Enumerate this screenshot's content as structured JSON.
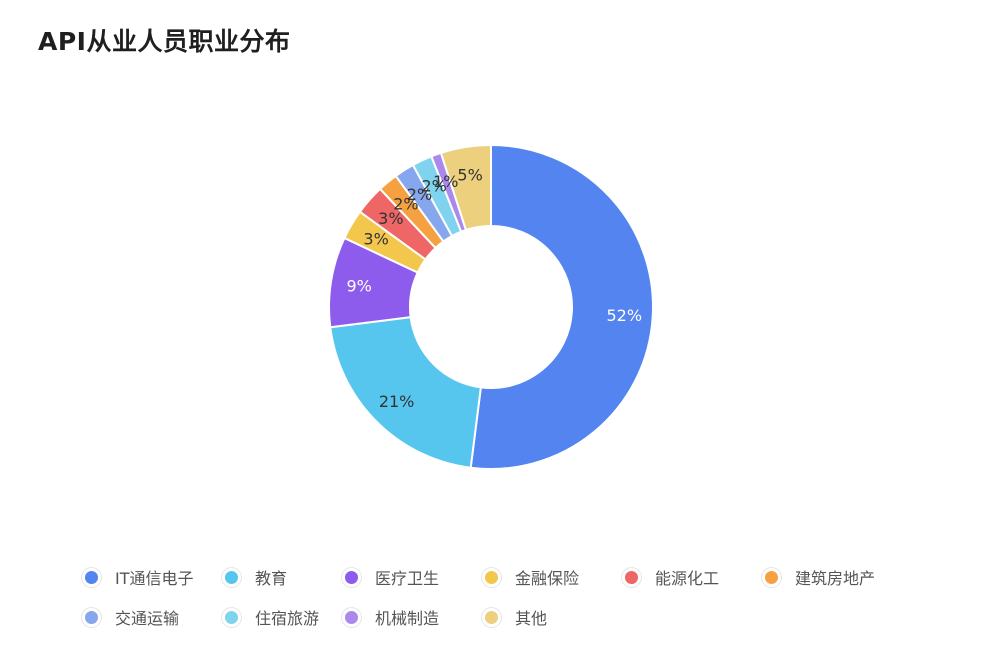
{
  "page": {
    "title": "API从业人员职业分布"
  },
  "chart_data": {
    "type": "pie",
    "style": "donut",
    "categories": [
      "IT通信电子",
      "教育",
      "医疗卫生",
      "金融保险",
      "能源化工",
      "建筑房地产",
      "交通运输",
      "住宿旅游",
      "机械制造",
      "其他"
    ],
    "values": [
      52,
      21,
      9,
      3,
      3,
      2,
      2,
      2,
      1,
      5
    ],
    "labels": [
      "52%",
      "21%",
      "9%",
      "3%",
      "3%",
      "2%",
      "2%",
      "2%",
      "1%",
      "5%"
    ],
    "colors": [
      "#5384f0",
      "#57c6ef",
      "#8e5ced",
      "#f3c64c",
      "#ee6666",
      "#f5a142",
      "#86a6ee",
      "#7fd3ee",
      "#ab88ec",
      "#ecd07e"
    ],
    "label_colors": [
      "#ffffff",
      "#333333",
      "#ffffff",
      "#333333",
      "#333333",
      "#333333",
      "#333333",
      "#333333",
      "#333333",
      "#333333"
    ],
    "legend_position": "bottom"
  }
}
